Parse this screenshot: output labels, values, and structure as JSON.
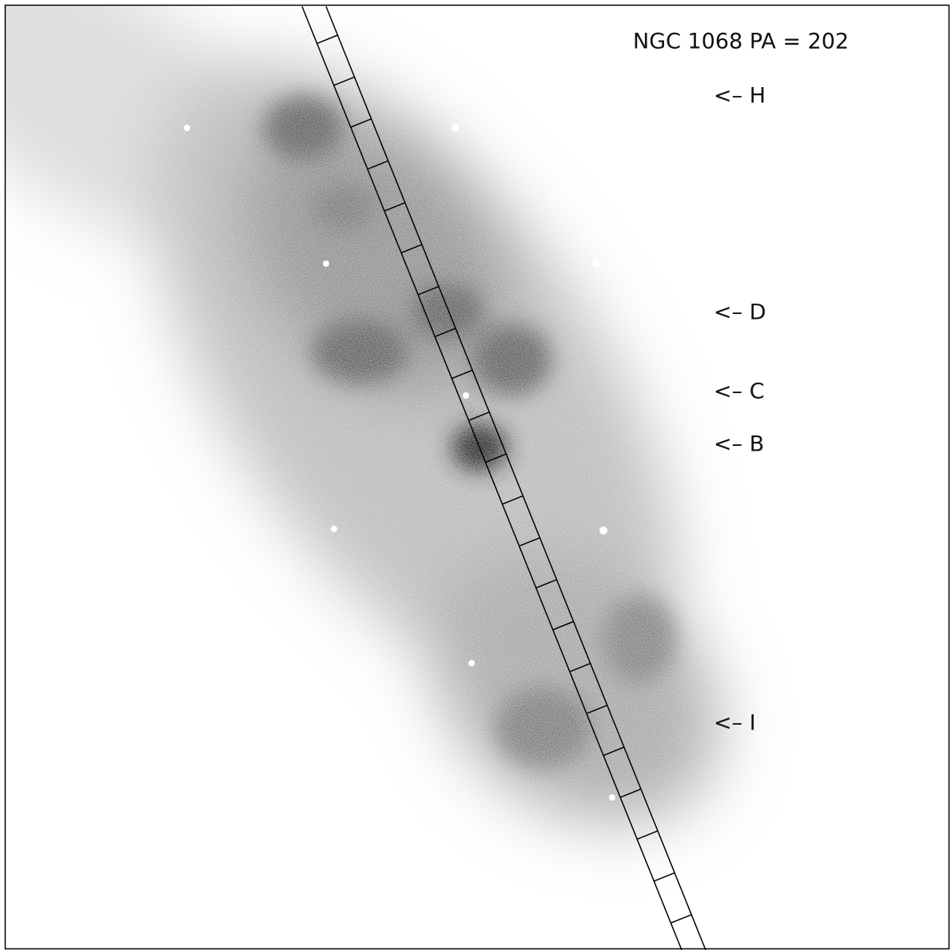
{
  "title": "NGC 1068  PA = 202",
  "markers": [
    {
      "label": "<– H"
    },
    {
      "label": "<– D"
    },
    {
      "label": "<– C"
    },
    {
      "label": "<– B"
    },
    {
      "label": "<– I"
    }
  ]
}
